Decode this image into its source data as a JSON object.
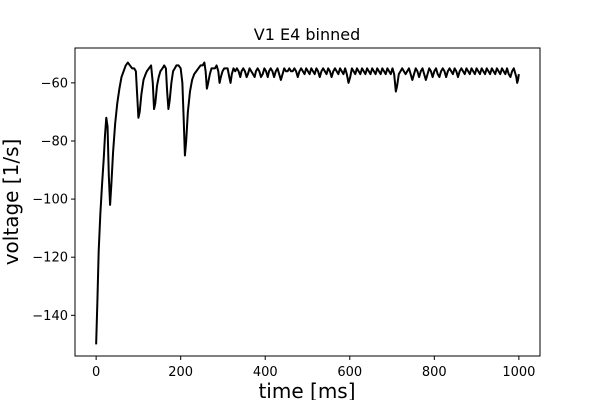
{
  "chart_data": {
    "type": "line",
    "title": "V1 E4 binned",
    "xlabel": "time [ms]",
    "ylabel": "voltage [1/s]",
    "xlim": [
      -50,
      1050
    ],
    "ylim": [
      -154,
      -48
    ],
    "xticks": [
      0,
      200,
      400,
      600,
      800,
      1000
    ],
    "yticks": [
      -140,
      -120,
      -100,
      -80,
      -60
    ],
    "xtick_labels": [
      "0",
      "200",
      "400",
      "600",
      "800",
      "1000"
    ],
    "ytick_labels": [
      "−140",
      "−120",
      "−100",
      "−80",
      "−60"
    ],
    "grid": false,
    "legend": "none",
    "series": [
      {
        "color": "#000000",
        "points": [
          [
            0,
            -150
          ],
          [
            3,
            -135
          ],
          [
            6,
            -118
          ],
          [
            10,
            -105
          ],
          [
            14,
            -95
          ],
          [
            18,
            -86
          ],
          [
            21,
            -78
          ],
          [
            24,
            -72
          ],
          [
            27,
            -75
          ],
          [
            30,
            -92
          ],
          [
            33,
            -102
          ],
          [
            36,
            -95
          ],
          [
            40,
            -84
          ],
          [
            45,
            -74
          ],
          [
            50,
            -67
          ],
          [
            55,
            -62
          ],
          [
            60,
            -58
          ],
          [
            65,
            -56
          ],
          [
            70,
            -54
          ],
          [
            75,
            -53
          ],
          [
            80,
            -54
          ],
          [
            85,
            -55
          ],
          [
            90,
            -55
          ],
          [
            94,
            -56
          ],
          [
            97,
            -64
          ],
          [
            100,
            -72
          ],
          [
            103,
            -70
          ],
          [
            107,
            -64
          ],
          [
            112,
            -59
          ],
          [
            117,
            -57
          ],
          [
            120,
            -56
          ],
          [
            125,
            -55
          ],
          [
            130,
            -54
          ],
          [
            134,
            -60
          ],
          [
            137,
            -69
          ],
          [
            140,
            -67
          ],
          [
            144,
            -61
          ],
          [
            148,
            -58
          ],
          [
            152,
            -56
          ],
          [
            157,
            -55
          ],
          [
            161,
            -54
          ],
          [
            165,
            -55
          ],
          [
            168,
            -63
          ],
          [
            171,
            -69
          ],
          [
            174,
            -66
          ],
          [
            178,
            -60
          ],
          [
            182,
            -56
          ],
          [
            186,
            -55
          ],
          [
            190,
            -54
          ],
          [
            195,
            -54
          ],
          [
            200,
            -55
          ],
          [
            204,
            -60
          ],
          [
            207,
            -72
          ],
          [
            210,
            -85
          ],
          [
            213,
            -80
          ],
          [
            217,
            -70
          ],
          [
            222,
            -63
          ],
          [
            227,
            -59
          ],
          [
            232,
            -57
          ],
          [
            237,
            -56
          ],
          [
            242,
            -55
          ],
          [
            247,
            -54
          ],
          [
            252,
            -54
          ],
          [
            256,
            -53
          ],
          [
            259,
            -56
          ],
          [
            262,
            -62
          ],
          [
            265,
            -60
          ],
          [
            269,
            -57
          ],
          [
            273,
            -55
          ],
          [
            277,
            -55
          ],
          [
            281,
            -55
          ],
          [
            285,
            -54
          ],
          [
            289,
            -56
          ],
          [
            292,
            -60
          ],
          [
            295,
            -58
          ],
          [
            299,
            -56
          ],
          [
            303,
            -55
          ],
          [
            307,
            -55
          ],
          [
            311,
            -55
          ],
          [
            315,
            -58
          ],
          [
            318,
            -60
          ],
          [
            321,
            -57
          ],
          [
            325,
            -55
          ],
          [
            329,
            -56
          ],
          [
            333,
            -55
          ],
          [
            337,
            -56
          ],
          [
            341,
            -58
          ],
          [
            344,
            -56
          ],
          [
            348,
            -55
          ],
          [
            352,
            -56
          ],
          [
            356,
            -58
          ],
          [
            359,
            -57
          ],
          [
            363,
            -55
          ],
          [
            367,
            -56
          ],
          [
            371,
            -57
          ],
          [
            375,
            -58
          ],
          [
            378,
            -56
          ],
          [
            382,
            -55
          ],
          [
            386,
            -56
          ],
          [
            390,
            -58
          ],
          [
            394,
            -57
          ],
          [
            398,
            -55
          ],
          [
            402,
            -56
          ],
          [
            406,
            -58
          ],
          [
            409,
            -56
          ],
          [
            413,
            -55
          ],
          [
            417,
            -56
          ],
          [
            421,
            -58
          ],
          [
            425,
            -56
          ],
          [
            429,
            -55
          ],
          [
            433,
            -57
          ],
          [
            437,
            -59
          ],
          [
            441,
            -57
          ],
          [
            445,
            -55
          ],
          [
            449,
            -56
          ],
          [
            453,
            -56
          ],
          [
            457,
            -55
          ],
          [
            461,
            -56
          ],
          [
            465,
            -56
          ],
          [
            469,
            -55
          ],
          [
            473,
            -56
          ],
          [
            477,
            -58
          ],
          [
            481,
            -56
          ],
          [
            485,
            -55
          ],
          [
            489,
            -56
          ],
          [
            493,
            -57
          ],
          [
            497,
            -55
          ],
          [
            501,
            -56
          ],
          [
            505,
            -57
          ],
          [
            509,
            -55
          ],
          [
            513,
            -56
          ],
          [
            517,
            -57
          ],
          [
            521,
            -55
          ],
          [
            525,
            -56
          ],
          [
            529,
            -58
          ],
          [
            533,
            -56
          ],
          [
            537,
            -55
          ],
          [
            541,
            -56
          ],
          [
            545,
            -57
          ],
          [
            549,
            -55
          ],
          [
            553,
            -56
          ],
          [
            557,
            -58
          ],
          [
            561,
            -56
          ],
          [
            565,
            -55
          ],
          [
            569,
            -56
          ],
          [
            573,
            -57
          ],
          [
            577,
            -55
          ],
          [
            581,
            -56
          ],
          [
            585,
            -57
          ],
          [
            589,
            -55
          ],
          [
            593,
            -57
          ],
          [
            597,
            -60
          ],
          [
            601,
            -58
          ],
          [
            605,
            -55
          ],
          [
            609,
            -56
          ],
          [
            613,
            -57
          ],
          [
            617,
            -55
          ],
          [
            621,
            -56
          ],
          [
            625,
            -57
          ],
          [
            629,
            -55
          ],
          [
            633,
            -56
          ],
          [
            637,
            -57
          ],
          [
            641,
            -55
          ],
          [
            645,
            -56
          ],
          [
            649,
            -57
          ],
          [
            653,
            -55
          ],
          [
            657,
            -56
          ],
          [
            661,
            -57
          ],
          [
            665,
            -55
          ],
          [
            669,
            -56
          ],
          [
            673,
            -57
          ],
          [
            677,
            -55
          ],
          [
            681,
            -56
          ],
          [
            685,
            -57
          ],
          [
            689,
            -55
          ],
          [
            693,
            -56
          ],
          [
            697,
            -57
          ],
          [
            701,
            -55
          ],
          [
            705,
            -57
          ],
          [
            709,
            -63
          ],
          [
            712,
            -61
          ],
          [
            716,
            -57
          ],
          [
            720,
            -56
          ],
          [
            724,
            -55
          ],
          [
            728,
            -56
          ],
          [
            732,
            -57
          ],
          [
            736,
            -56
          ],
          [
            740,
            -55
          ],
          [
            744,
            -57
          ],
          [
            748,
            -59
          ],
          [
            752,
            -57
          ],
          [
            756,
            -55
          ],
          [
            760,
            -56
          ],
          [
            764,
            -58
          ],
          [
            768,
            -56
          ],
          [
            772,
            -55
          ],
          [
            776,
            -57
          ],
          [
            780,
            -59
          ],
          [
            784,
            -57
          ],
          [
            788,
            -55
          ],
          [
            792,
            -56
          ],
          [
            796,
            -58
          ],
          [
            800,
            -56
          ],
          [
            804,
            -55
          ],
          [
            808,
            -57
          ],
          [
            812,
            -58
          ],
          [
            816,
            -56
          ],
          [
            820,
            -55
          ],
          [
            824,
            -56
          ],
          [
            828,
            -58
          ],
          [
            832,
            -56
          ],
          [
            836,
            -55
          ],
          [
            840,
            -56
          ],
          [
            844,
            -57
          ],
          [
            848,
            -55
          ],
          [
            852,
            -56
          ],
          [
            856,
            -58
          ],
          [
            860,
            -56
          ],
          [
            864,
            -55
          ],
          [
            868,
            -56
          ],
          [
            872,
            -57
          ],
          [
            876,
            -55
          ],
          [
            880,
            -56
          ],
          [
            884,
            -57
          ],
          [
            888,
            -55
          ],
          [
            892,
            -56
          ],
          [
            896,
            -57
          ],
          [
            900,
            -55
          ],
          [
            904,
            -56
          ],
          [
            908,
            -57
          ],
          [
            912,
            -55
          ],
          [
            916,
            -56
          ],
          [
            920,
            -57
          ],
          [
            924,
            -55
          ],
          [
            928,
            -56
          ],
          [
            932,
            -57
          ],
          [
            936,
            -55
          ],
          [
            940,
            -56
          ],
          [
            944,
            -57
          ],
          [
            948,
            -55
          ],
          [
            952,
            -56
          ],
          [
            956,
            -57
          ],
          [
            960,
            -55
          ],
          [
            964,
            -56
          ],
          [
            968,
            -57
          ],
          [
            972,
            -55
          ],
          [
            976,
            -57
          ],
          [
            980,
            -58
          ],
          [
            984,
            -56
          ],
          [
            988,
            -55
          ],
          [
            992,
            -57
          ],
          [
            994,
            -58
          ],
          [
            996,
            -60
          ],
          [
            998,
            -59
          ],
          [
            1000,
            -57
          ]
        ]
      }
    ]
  }
}
